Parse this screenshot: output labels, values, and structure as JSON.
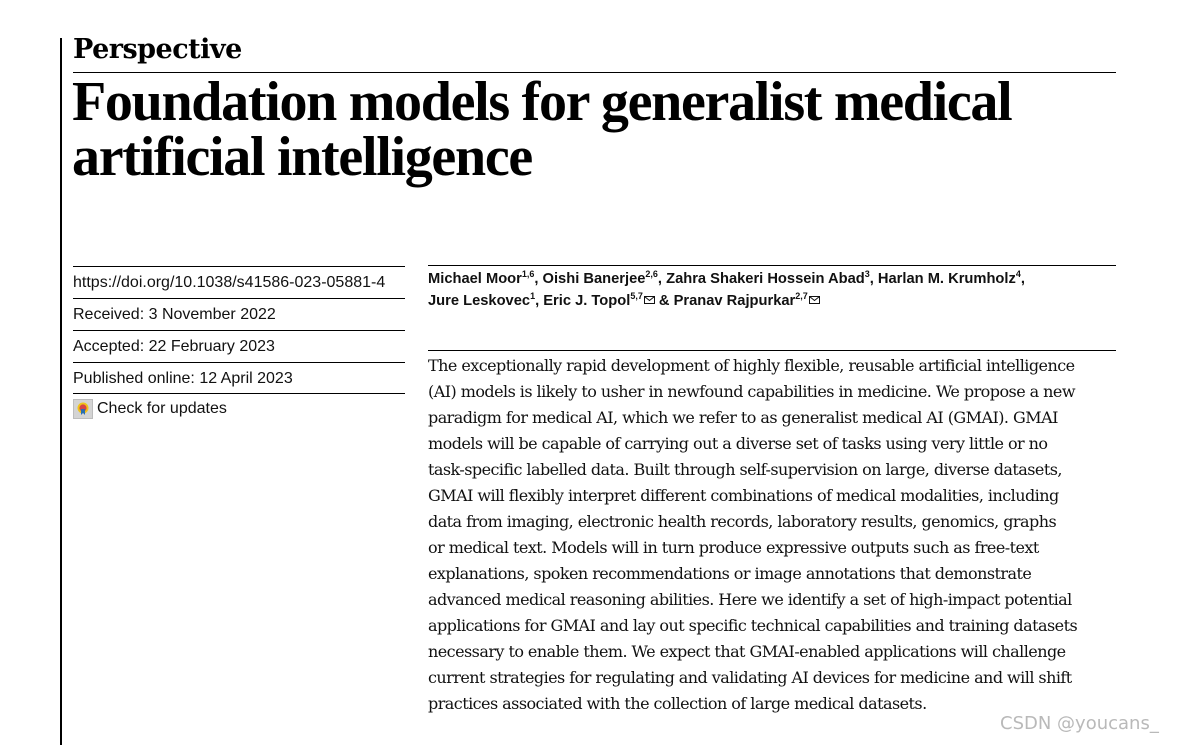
{
  "article_type": "Perspective",
  "title_lines": [
    "Foundation models for generalist medical",
    "artificial intelligence"
  ],
  "meta": {
    "doi": "https://doi.org/10.1038/s41586-023-05881-4",
    "received": "Received: 3 November 2022",
    "accepted": "Accepted: 22 February 2023",
    "published": "Published online: 12 April 2023",
    "check_updates": "Check for updates"
  },
  "authors": [
    {
      "name": "Michael Moor",
      "affil": "1,6",
      "sep": ", "
    },
    {
      "name": "Oishi Banerjee",
      "affil": "2,6",
      "sep": ", "
    },
    {
      "name": "Zahra Shakeri Hossein Abad",
      "affil": "3",
      "sep": ", "
    },
    {
      "name": "Harlan M. Krumholz",
      "affil": "4",
      "sep": ","
    },
    {
      "name": "Jure Leskovec",
      "affil": "1",
      "sep": ", "
    },
    {
      "name": "Eric J. Topol",
      "affil": "5,7",
      "sep": " & "
    },
    {
      "name": "Pranav Rajpurkar",
      "affil": "2,7",
      "sep": ""
    }
  ],
  "abstract_lines": [
    "The exceptionally rapid development of highly flexible, reusable artificial intelligence",
    "(AI) models is likely to usher in newfound capabilities in medicine. We propose a new",
    "paradigm for medical AI, which we refer to as generalist medical AI (GMAI). GMAI",
    "models will be capable of carrying out a diverse set of tasks using very little or no",
    "task-specific labelled data. Built through self-supervision on large, diverse datasets,",
    "GMAI will flexibly interpret different combinations of medical modalities, including",
    "data from imaging, electronic health records, laboratory results, genomics, graphs",
    "or medical text. Models will in turn produce expressive outputs such as free-text",
    "explanations, spoken recommendations or image annotations that demonstrate",
    "advanced medical reasoning abilities. Here we identify a set of high-impact potential",
    "applications for GMAI and lay out specific technical capabilities and training datasets",
    "necessary to enable them. We expect that GMAI-enabled applications will challenge",
    "current strategies for regulating and validating AI devices for medicine and will shift",
    "practices associated with the collection of large medical datasets."
  ],
  "watermark": "CSDN @youcans_",
  "icons": {
    "check_updates": "check-for-updates-icon",
    "corresponding": "envelope-icon"
  },
  "colors": {
    "text": "#111111",
    "watermark": "#b9b9b9",
    "rule": "#000000"
  }
}
